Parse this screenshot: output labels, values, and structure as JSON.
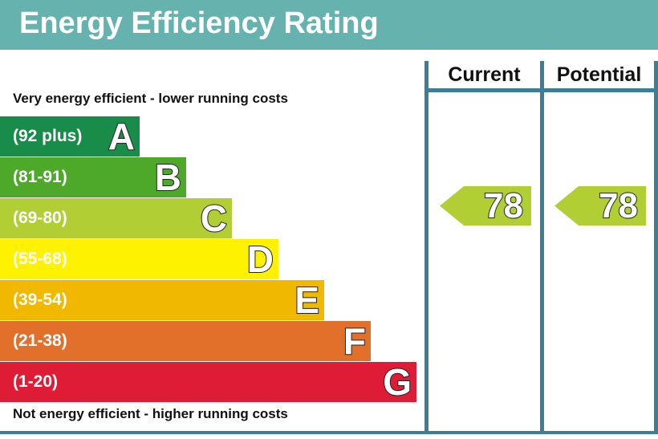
{
  "title": "Energy Efficiency Rating",
  "captions": {
    "top": "Very energy efficient - lower running costs",
    "bottom": "Not energy efficient - higher running costs"
  },
  "columns": {
    "current": "Current",
    "potential": "Potential"
  },
  "colors": {
    "header": "#66b2ae",
    "column_line": "#3d7e96",
    "A": "#198c4a",
    "B": "#4ea82a",
    "C": "#b1cf35",
    "D": "#fff200",
    "E": "#f0b900",
    "F": "#e2702a",
    "G": "#df1c35"
  },
  "chart_data": {
    "type": "bar",
    "title": "Energy Efficiency Rating",
    "categories": [
      "A",
      "B",
      "C",
      "D",
      "E",
      "F",
      "G"
    ],
    "bands": [
      {
        "letter": "A",
        "range": "(92 plus)",
        "color": "#198c4a",
        "text": "light"
      },
      {
        "letter": "B",
        "range": "(81-91)",
        "color": "#4ea82a",
        "text": "light"
      },
      {
        "letter": "C",
        "range": "(69-80)",
        "color": "#b1cf35",
        "text": "dark"
      },
      {
        "letter": "D",
        "range": "(55-68)",
        "color": "#fff200",
        "text": "dark"
      },
      {
        "letter": "E",
        "range": "(39-54)",
        "color": "#f0b900",
        "text": "dark"
      },
      {
        "letter": "F",
        "range": "(21-38)",
        "color": "#e2702a",
        "text": "dark"
      },
      {
        "letter": "G",
        "range": "(1-20)",
        "color": "#df1c35",
        "text": "dark"
      }
    ],
    "series": [
      {
        "name": "Current",
        "value": 78,
        "band": "C"
      },
      {
        "name": "Potential",
        "value": 78,
        "band": "C"
      }
    ]
  }
}
